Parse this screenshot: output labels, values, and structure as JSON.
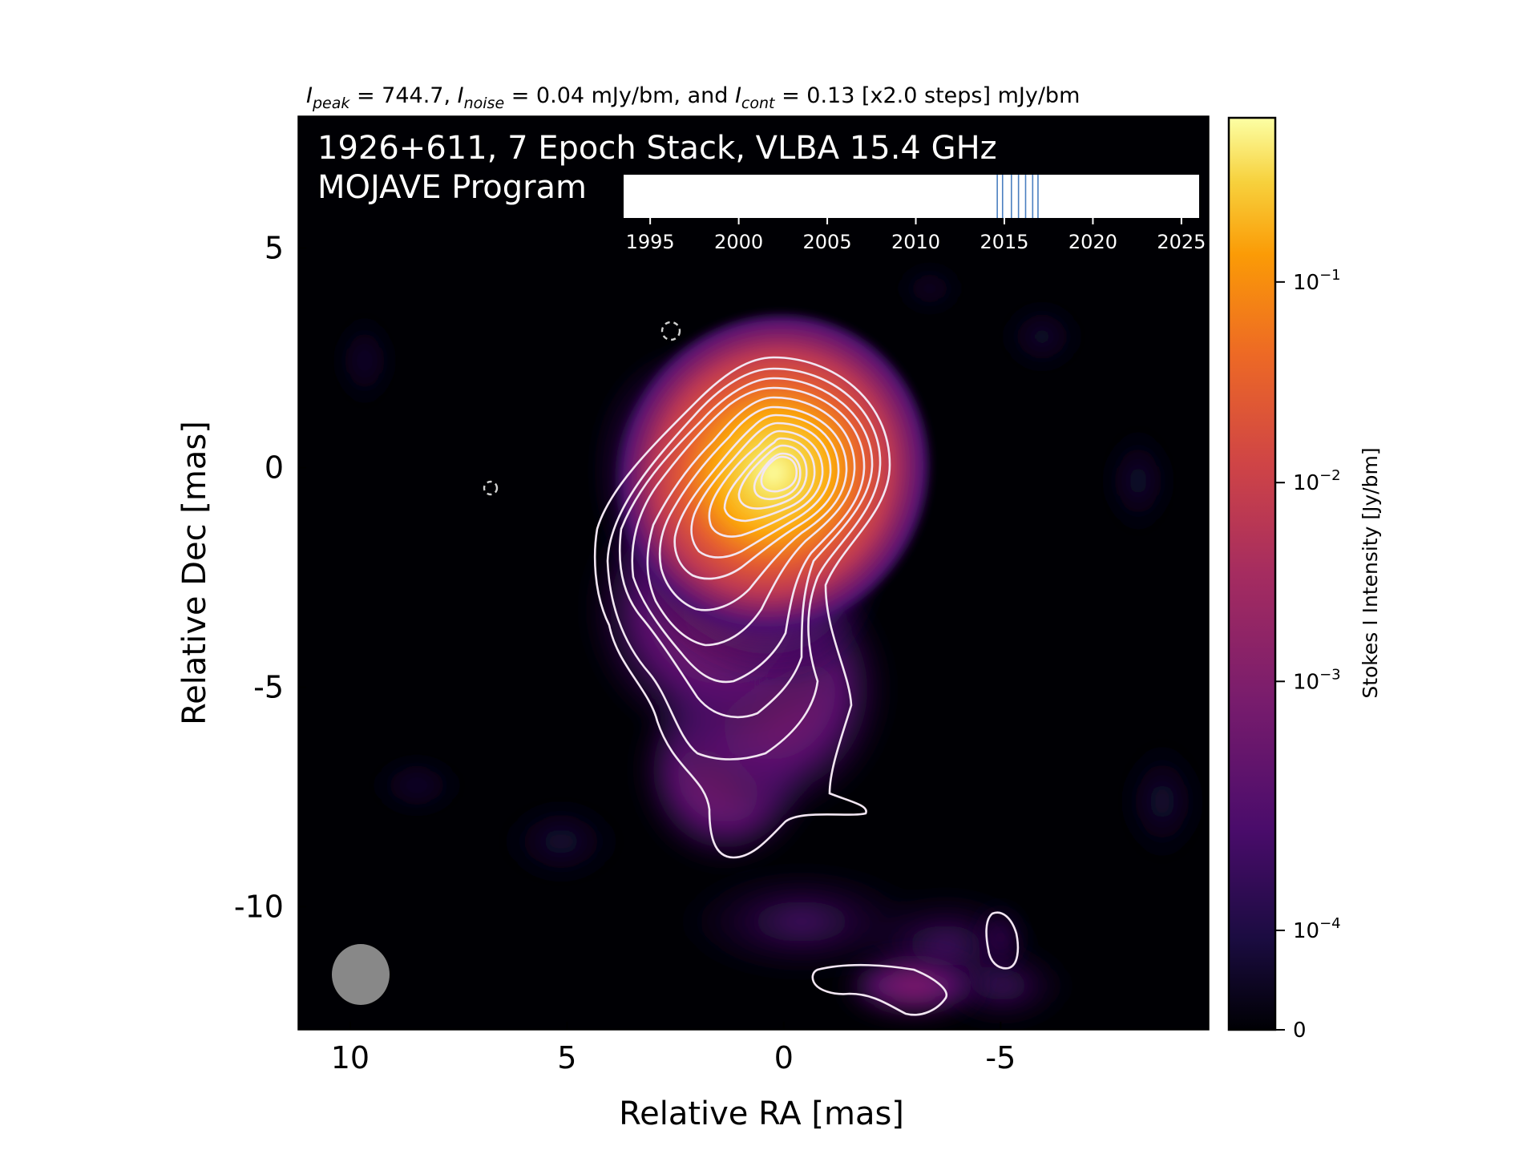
{
  "header": {
    "stats_line_prefix_peak": "I",
    "stats_sub_peak": "peak",
    "stats_peak_value": " = 744.7, ",
    "stats_prefix_noise": "I",
    "stats_sub_noise": "noise",
    "stats_noise_value": " = 0.04 mJy/bm, and ",
    "stats_prefix_cont": "I",
    "stats_sub_cont": "cont",
    "stats_cont_value": " = 0.13 [x2.0 steps] mJy/bm"
  },
  "overlay": {
    "title_line1": "1926+611, 7 Epoch Stack, VLBA 15.4 GHz",
    "title_line2": "MOJAVE Program"
  },
  "colors": {
    "background": "#000004",
    "contour": "#f2e6f2",
    "epoch_marker": "#4a7fc0",
    "beam": "#888888",
    "colormap": "inferno"
  },
  "chart_data": [
    {
      "type": "heatmap",
      "description_none": "",
      "xlabel": "Relative RA [mas]",
      "ylabel": "Relative Dec [mas]",
      "xlim": [
        11.2,
        -9.8
      ],
      "ylim": [
        -12.8,
        8.0
      ],
      "x_ticks": [
        10,
        5,
        0,
        -5
      ],
      "x_tick_labels": [
        "10",
        "5",
        "0",
        "-5"
      ],
      "y_ticks": [
        5,
        0,
        -5,
        -10
      ],
      "y_tick_labels": [
        "5",
        "0",
        "-5",
        "-10"
      ],
      "peak_position_mas": [
        0,
        0
      ],
      "peak_intensity_mJy_per_beam": 744.7,
      "noise_mJy_per_beam": 0.04,
      "lowest_contour_mJy_per_beam": 0.13,
      "contour_step_factor": 2.0,
      "contour_count": 13,
      "jet_direction": "south",
      "beam": {
        "center_mas": [
          9.8,
          -11.5
        ],
        "major_mas": 1.3,
        "minor_mas": 1.3
      },
      "negative_contours_mas": [
        [
          2.7,
          3.1
        ],
        [
          6.8,
          -0.4
        ]
      ],
      "grid": false
    },
    {
      "type": "colorbar",
      "label": "Stokes I Intensity [Jy/bm]",
      "scale": "symlog",
      "ticks": [
        0,
        0.0001,
        0.001,
        0.01,
        0.1
      ],
      "tick_labels": [
        "0",
        "10",
        "10",
        "10",
        "10"
      ],
      "tick_exponents": [
        "",
        "−4",
        "−3",
        "−2",
        "−1"
      ]
    },
    {
      "type": "timeline",
      "xlim": [
        1993.5,
        2026.0
      ],
      "x_ticks": [
        1995,
        2000,
        2005,
        2010,
        2015,
        2020,
        2025
      ],
      "x_tick_labels": [
        "1995",
        "2000",
        "2005",
        "2010",
        "2015",
        "2020",
        "2025"
      ],
      "epochs": [
        2014.6,
        2014.9,
        2015.4,
        2015.8,
        2016.2,
        2016.6,
        2016.9
      ]
    }
  ]
}
